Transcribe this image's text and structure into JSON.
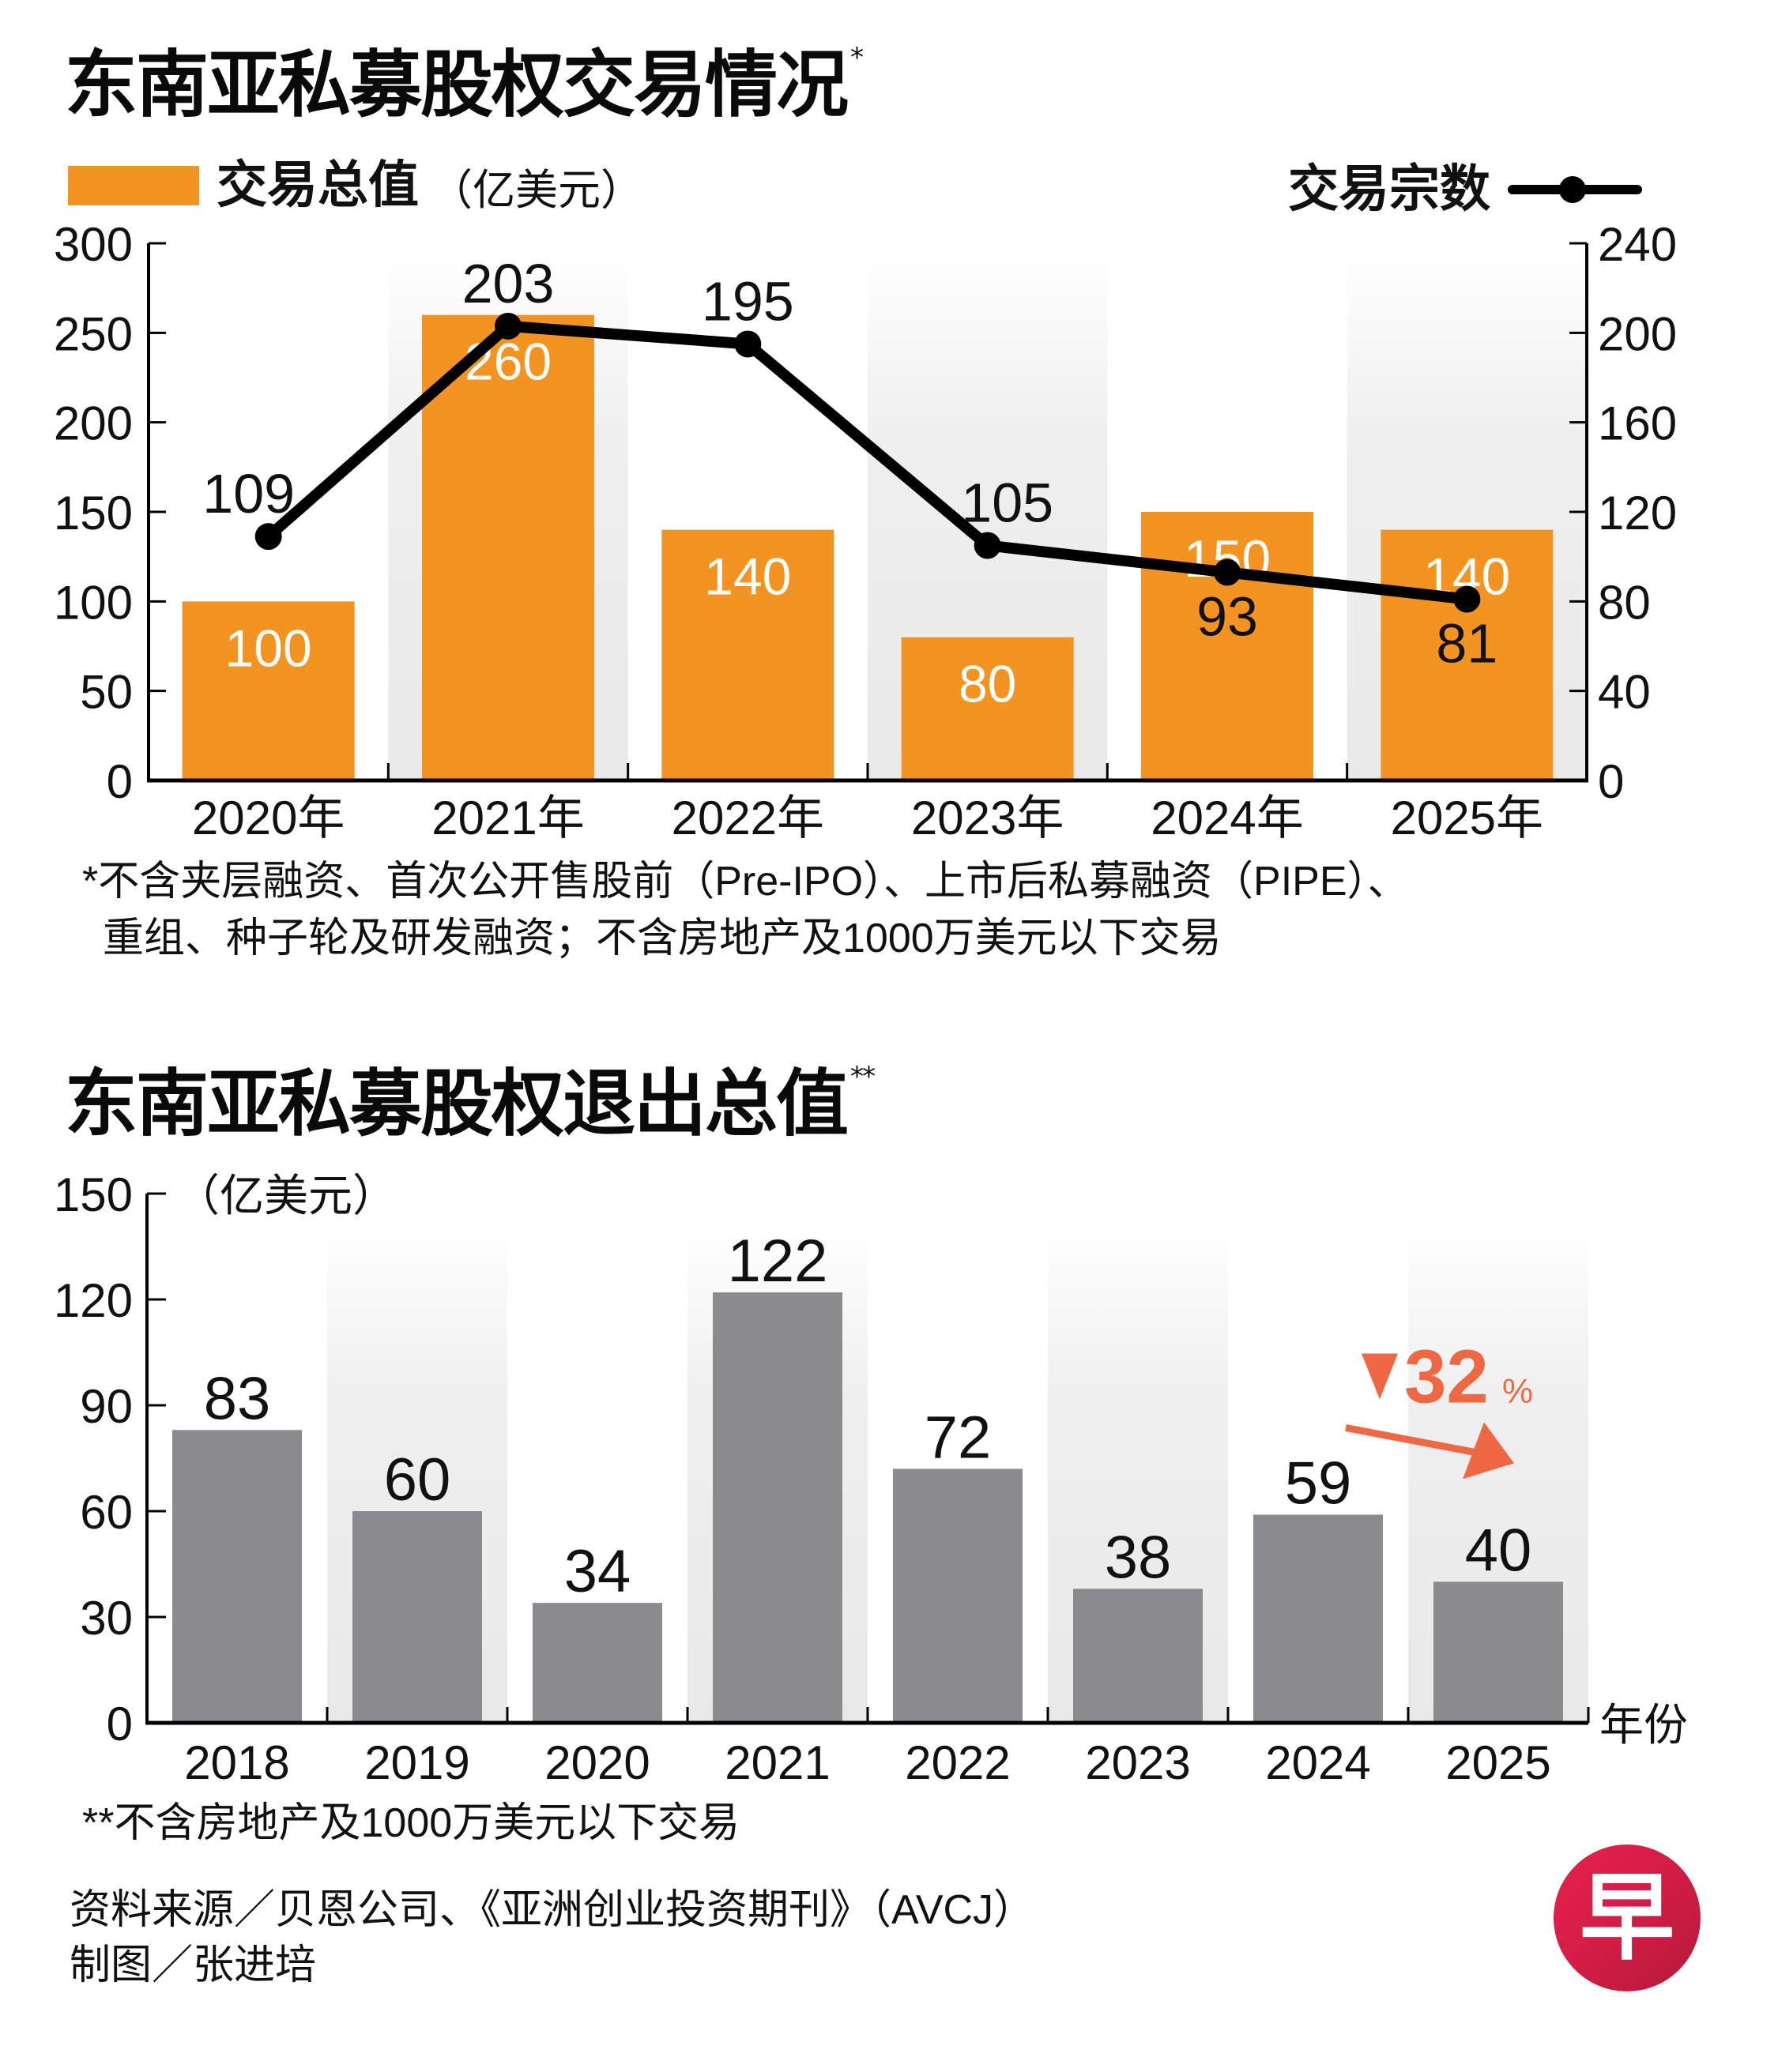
{
  "brand": {
    "logo_glyph": "早",
    "logo_color": "#d21d45"
  },
  "colors": {
    "deal_value_bar": "#f39322",
    "deal_count_line": "#000000",
    "exit_bar": "#8b8b8e",
    "highlight": "#ee6843",
    "band": "#ececec"
  },
  "chart_data": [
    {
      "type": "bar",
      "title": "东南亚私募股权交易情况",
      "title_footnote_mark": "*",
      "categories": [
        "2020年",
        "2021年",
        "2022年",
        "2023年",
        "2024年",
        "2025年"
      ],
      "series": [
        {
          "name": "交易总值",
          "unit": "（亿美元）",
          "type": "bar",
          "axis": "left",
          "values": [
            100,
            260,
            140,
            80,
            150,
            140
          ]
        },
        {
          "name": "交易宗数",
          "type": "line",
          "axis": "right",
          "values": [
            109,
            203,
            195,
            105,
            93,
            81
          ]
        }
      ],
      "y_left": {
        "ylim": [
          0,
          300
        ],
        "ticks": [
          0,
          50,
          100,
          150,
          200,
          250,
          300
        ]
      },
      "y_right": {
        "ylim": [
          0,
          240
        ],
        "ticks": [
          0,
          40,
          80,
          120,
          160,
          200,
          240
        ]
      },
      "legend": {
        "placement": "top",
        "bar_label": "交易总值",
        "bar_unit": "（亿美元）",
        "line_label": "交易宗数"
      },
      "footnote_lines": [
        "*不含夹层融资、首次公开售股前（Pre-IPO）、上市后私募融资（PIPE）、",
        "重组、种子轮及研发融资；不含房地产及1000万美元以下交易"
      ]
    },
    {
      "type": "bar",
      "title": "东南亚私募股权退出总值",
      "title_footnote_mark": "**",
      "ylabel": "（亿美元）",
      "xlabel": "年份",
      "categories": [
        "2018",
        "2019",
        "2020",
        "2021",
        "2022",
        "2023",
        "2024",
        "2025"
      ],
      "values": [
        83,
        60,
        34,
        122,
        72,
        38,
        59,
        40
      ],
      "ylim": [
        0,
        150
      ],
      "ticks": [
        0,
        30,
        60,
        90,
        120,
        150
      ],
      "annotation": {
        "text": "32",
        "suffix": "%",
        "direction": "down",
        "from": "2024",
        "to": "2025"
      },
      "footnote": "**不含房地产及1000万美元以下交易"
    }
  ],
  "credits": {
    "source": "资料来源／贝恩公司、《亚洲创业投资期刊》（AVCJ）",
    "graphic": "制图／张进培"
  }
}
